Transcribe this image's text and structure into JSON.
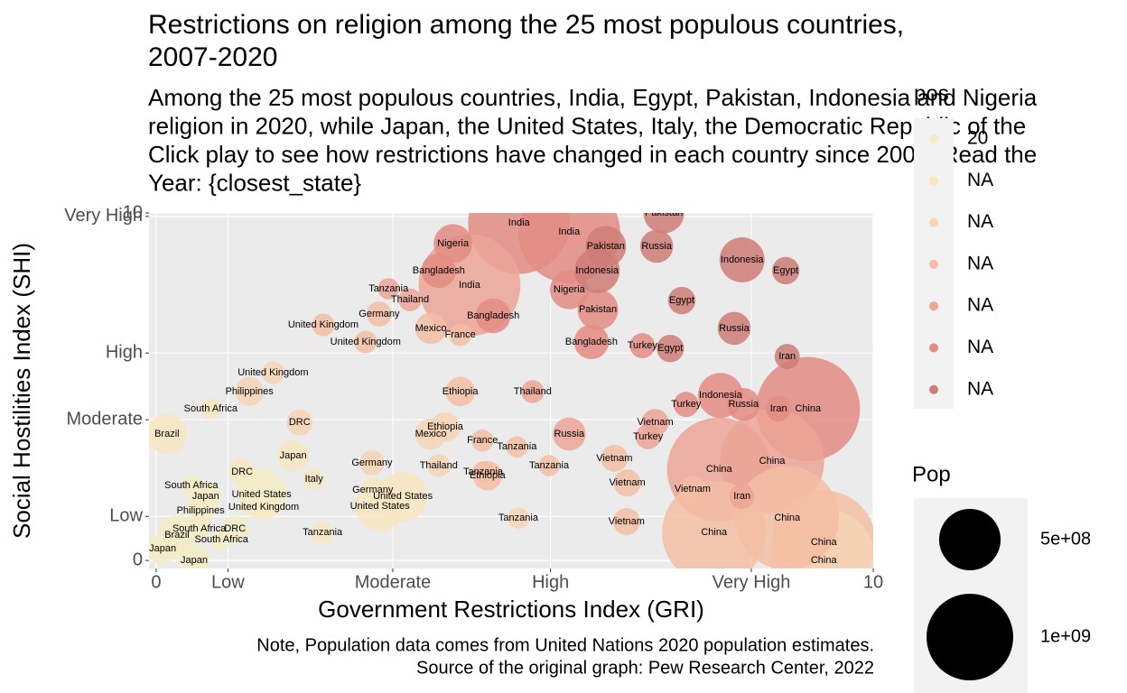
{
  "chart_data": {
    "type": "scatter",
    "title": [
      "Restrictions on religion among the 25 most populous countries,",
      "2007-2020"
    ],
    "subtitle": [
      "Among the 25 most populous countries, India, Egypt, Pakistan, Indonesia and Nigeria",
      "religion in 2020, while Japan, the United States, Italy, the Democratic Republic of the",
      "Click play to see how restrictions have changed in each country since 2007. Read the",
      "Year: {closest_state}"
    ],
    "x_label": "Government Restrictions Index (GRI)",
    "y_label": "Social Hostilities Index (SHI)",
    "caption": [
      "Note, Population data comes from United Nations 2020 population estimates.",
      "Source of the original graph: Pew Research Center, 2022"
    ],
    "xlim": [
      -0.1,
      10
    ],
    "ylim": [
      -0.23,
      10
    ],
    "xticks": [
      0,
      {
        "value": 1.0,
        "label": "Low"
      },
      {
        "value": 3.3,
        "label": "Moderate"
      },
      {
        "value": 5.5,
        "label": "High"
      },
      {
        "value": 8.3,
        "label": "Very High"
      },
      10
    ],
    "yticks": [
      0,
      {
        "value": 1.27,
        "label": "Low"
      },
      {
        "value": 4.05,
        "label": "Moderate"
      },
      {
        "value": 5.97,
        "label": "High"
      },
      {
        "value": 9.9,
        "label": "Very High"
      },
      10
    ],
    "grid": true,
    "color_legend": {
      "title": "pos",
      "items": [
        {
          "label": "20",
          "color": "#f5ecc6"
        },
        {
          "label": "NA",
          "color": "#f7e6c1"
        },
        {
          "label": "NA",
          "color": "#f6d4b4"
        },
        {
          "label": "NA",
          "color": "#f3bea5"
        },
        {
          "label": "NA",
          "color": "#eca596"
        },
        {
          "label": "NA",
          "color": "#e38c84"
        },
        {
          "label": "NA",
          "color": "#cf7c77"
        }
      ]
    },
    "size_legend": {
      "title": "Pop",
      "items": [
        {
          "value": 500000000,
          "label": "5e+08"
        },
        {
          "value": 1000000000,
          "label": "1e+09"
        }
      ]
    },
    "points": [
      {
        "label": "China",
        "x": 9.09,
        "y": 4.36,
        "pop": 1440000000,
        "color": "#e38c84"
      },
      {
        "label": "China",
        "x": 7.85,
        "y": 2.62,
        "pop": 1440000000,
        "color": "#eca596"
      },
      {
        "label": "China",
        "x": 8.59,
        "y": 2.86,
        "pop": 1440000000,
        "color": "#eca596"
      },
      {
        "label": "China",
        "x": 9.31,
        "y": 0.52,
        "pop": 1440000000,
        "color": "#f3bea5"
      },
      {
        "label": "China",
        "x": 9.31,
        "y": 0.0,
        "pop": 1440000000,
        "color": "#f6d4b4"
      },
      {
        "label": "China",
        "x": 7.78,
        "y": 0.81,
        "pop": 1440000000,
        "color": "#f3bea5"
      },
      {
        "label": "China",
        "x": 8.8,
        "y": 1.22,
        "pop": 1440000000,
        "color": "#f3bea5"
      },
      {
        "label": "India",
        "x": 5.06,
        "y": 9.71,
        "pop": 1380000000,
        "color": "#e38c84"
      },
      {
        "label": "India",
        "x": 5.76,
        "y": 9.45,
        "pop": 1380000000,
        "color": "#e38c84"
      },
      {
        "label": "India",
        "x": 4.37,
        "y": 7.92,
        "pop": 1380000000,
        "color": "#eca596"
      },
      {
        "label": "Pakistan",
        "x": 7.08,
        "y": 10.0,
        "pop": 220000000,
        "color": "#cf7c77"
      },
      {
        "label": "Pakistan",
        "x": 6.27,
        "y": 9.04,
        "pop": 220000000,
        "color": "#cf7c77"
      },
      {
        "label": "Pakistan",
        "x": 6.16,
        "y": 7.22,
        "pop": 220000000,
        "color": "#e38c84"
      },
      {
        "label": "Nigeria",
        "x": 4.14,
        "y": 9.12,
        "pop": 200000000,
        "color": "#e38c84"
      },
      {
        "label": "Nigeria",
        "x": 5.76,
        "y": 7.79,
        "pop": 200000000,
        "color": "#e38c84"
      },
      {
        "label": "Russia",
        "x": 6.98,
        "y": 9.04,
        "pop": 145000000,
        "color": "#cf7c77"
      },
      {
        "label": "Russia",
        "x": 8.06,
        "y": 6.68,
        "pop": 145000000,
        "color": "#cf7c77"
      },
      {
        "label": "Russia",
        "x": 8.19,
        "y": 4.49,
        "pop": 145000000,
        "color": "#e38c84"
      },
      {
        "label": "Russia",
        "x": 5.76,
        "y": 3.64,
        "pop": 145000000,
        "color": "#eca596"
      },
      {
        "label": "Indonesia",
        "x": 8.17,
        "y": 8.65,
        "pop": 270000000,
        "color": "#cf7c77"
      },
      {
        "label": "Indonesia",
        "x": 6.15,
        "y": 8.34,
        "pop": 270000000,
        "color": "#cf7c77"
      },
      {
        "label": "Indonesia",
        "x": 7.87,
        "y": 4.75,
        "pop": 270000000,
        "color": "#e38c84"
      },
      {
        "label": "Bangladesh",
        "x": 3.94,
        "y": 8.34,
        "pop": 160000000,
        "color": "#e38c84"
      },
      {
        "label": "Bangladesh",
        "x": 4.7,
        "y": 7.04,
        "pop": 160000000,
        "color": "#e38c84"
      },
      {
        "label": "Bangladesh",
        "x": 6.07,
        "y": 6.29,
        "pop": 160000000,
        "color": "#e38c84"
      },
      {
        "label": "Egypt",
        "x": 8.78,
        "y": 8.34,
        "pop": 100000000,
        "color": "#cf7c77"
      },
      {
        "label": "Egypt",
        "x": 7.33,
        "y": 7.48,
        "pop": 100000000,
        "color": "#cf7c77"
      },
      {
        "label": "Egypt",
        "x": 7.17,
        "y": 6.1,
        "pop": 100000000,
        "color": "#cf7c77"
      },
      {
        "label": "Iran",
        "x": 8.8,
        "y": 5.87,
        "pop": 84000000,
        "color": "#cf7c77"
      },
      {
        "label": "Iran",
        "x": 8.68,
        "y": 4.36,
        "pop": 84000000,
        "color": "#e38c84"
      },
      {
        "label": "Iran",
        "x": 8.17,
        "y": 1.84,
        "pop": 84000000,
        "color": "#eca596"
      },
      {
        "label": "Turkey",
        "x": 6.78,
        "y": 6.18,
        "pop": 84000000,
        "color": "#e38c84"
      },
      {
        "label": "Turkey",
        "x": 7.39,
        "y": 4.49,
        "pop": 84000000,
        "color": "#e38c84"
      },
      {
        "label": "Turkey",
        "x": 6.86,
        "y": 3.56,
        "pop": 84000000,
        "color": "#eca596"
      },
      {
        "label": "Vietnam",
        "x": 6.96,
        "y": 3.97,
        "pop": 97000000,
        "color": "#eca596"
      },
      {
        "label": "Vietnam",
        "x": 6.39,
        "y": 2.94,
        "pop": 97000000,
        "color": "#f3bea5"
      },
      {
        "label": "Vietnam",
        "x": 6.57,
        "y": 2.23,
        "pop": 97000000,
        "color": "#f3bea5"
      },
      {
        "label": "Vietnam",
        "x": 7.48,
        "y": 2.05,
        "pop": 97000000,
        "color": "#f3bea5"
      },
      {
        "label": "Vietnam",
        "x": 6.56,
        "y": 1.12,
        "pop": 97000000,
        "color": "#f3bea5"
      },
      {
        "label": "Thailand",
        "x": 3.54,
        "y": 7.5,
        "pop": 70000000,
        "color": "#eca596"
      },
      {
        "label": "Thailand",
        "x": 5.25,
        "y": 4.86,
        "pop": 70000000,
        "color": "#eca596"
      },
      {
        "label": "Thailand",
        "x": 3.94,
        "y": 2.73,
        "pop": 70000000,
        "color": "#f6d4b4"
      },
      {
        "label": "Tanzania",
        "x": 3.24,
        "y": 7.82,
        "pop": 60000000,
        "color": "#eca596"
      },
      {
        "label": "Tanzania",
        "x": 5.03,
        "y": 3.27,
        "pop": 60000000,
        "color": "#f3bea5"
      },
      {
        "label": "Tanzania",
        "x": 4.56,
        "y": 2.55,
        "pop": 60000000,
        "color": "#f3bea5"
      },
      {
        "label": "Tanzania",
        "x": 5.48,
        "y": 2.73,
        "pop": 60000000,
        "color": "#f3bea5"
      },
      {
        "label": "Tanzania",
        "x": 5.05,
        "y": 1.22,
        "pop": 60000000,
        "color": "#f6d4b4"
      },
      {
        "label": "Tanzania",
        "x": 2.32,
        "y": 0.81,
        "pop": 60000000,
        "color": "#f7e6c1"
      },
      {
        "label": "Germany",
        "x": 3.11,
        "y": 7.09,
        "pop": 83000000,
        "color": "#f3bea5"
      },
      {
        "label": "Germany",
        "x": 3.02,
        "y": 2.03,
        "pop": 83000000,
        "color": "#f7e6c1"
      },
      {
        "label": "Germany",
        "x": 3.01,
        "y": 2.81,
        "pop": 83000000,
        "color": "#f6d4b4"
      },
      {
        "label": "Mexico",
        "x": 3.83,
        "y": 6.68,
        "pop": 130000000,
        "color": "#f3bea5"
      },
      {
        "label": "Mexico",
        "x": 3.83,
        "y": 3.64,
        "pop": 130000000,
        "color": "#f6d4b4"
      },
      {
        "label": "United Kingdom",
        "x": 2.33,
        "y": 6.78,
        "pop": 68000000,
        "color": "#f3bea5"
      },
      {
        "label": "United Kingdom",
        "x": 2.92,
        "y": 6.29,
        "pop": 68000000,
        "color": "#f3bea5"
      },
      {
        "label": "United Kingdom",
        "x": 1.63,
        "y": 5.4,
        "pop": 68000000,
        "color": "#f6d4b4"
      },
      {
        "label": "United Kingdom",
        "x": 1.5,
        "y": 1.53,
        "pop": 68000000,
        "color": "#f7e6c1"
      },
      {
        "label": "France",
        "x": 4.24,
        "y": 6.49,
        "pop": 65000000,
        "color": "#f3bea5"
      },
      {
        "label": "France",
        "x": 4.55,
        "y": 3.45,
        "pop": 65000000,
        "color": "#f3bea5"
      },
      {
        "label": "Ethiopia",
        "x": 4.24,
        "y": 4.86,
        "pop": 115000000,
        "color": "#f3bea5"
      },
      {
        "label": "Ethiopia",
        "x": 4.03,
        "y": 3.84,
        "pop": 115000000,
        "color": "#f6d4b4"
      },
      {
        "label": "Ethiopia",
        "x": 4.62,
        "y": 2.44,
        "pop": 115000000,
        "color": "#f3bea5"
      },
      {
        "label": "Philippines",
        "x": 1.3,
        "y": 4.86,
        "pop": 110000000,
        "color": "#f6d4b4"
      },
      {
        "label": "Philippines",
        "x": 0.62,
        "y": 1.43,
        "pop": 110000000,
        "color": "#f5ecc6"
      },
      {
        "label": "DRC",
        "x": 2.0,
        "y": 3.97,
        "pop": 90000000,
        "color": "#f6d4b4"
      },
      {
        "label": "DRC",
        "x": 1.2,
        "y": 2.55,
        "pop": 90000000,
        "color": "#f7e6c1"
      },
      {
        "label": "DRC",
        "x": 1.1,
        "y": 0.91,
        "pop": 90000000,
        "color": "#f5ecc6"
      },
      {
        "label": "Brazil",
        "x": 0.15,
        "y": 3.64,
        "pop": 210000000,
        "color": "#f7e6c1"
      },
      {
        "label": "Brazil",
        "x": 0.29,
        "y": 0.73,
        "pop": 210000000,
        "color": "#f5ecc6"
      },
      {
        "label": "South Africa",
        "x": 0.76,
        "y": 4.36,
        "pop": 59000000,
        "color": "#f7e6c1"
      },
      {
        "label": "South Africa",
        "x": 0.49,
        "y": 2.16,
        "pop": 59000000,
        "color": "#f5ecc6"
      },
      {
        "label": "South Africa",
        "x": 0.6,
        "y": 0.91,
        "pop": 59000000,
        "color": "#f5ecc6"
      },
      {
        "label": "South Africa",
        "x": 0.91,
        "y": 0.6,
        "pop": 59000000,
        "color": "#f5ecc6"
      },
      {
        "label": "Japan",
        "x": 1.91,
        "y": 3.01,
        "pop": 126000000,
        "color": "#f7e6c1"
      },
      {
        "label": "Japan",
        "x": 0.69,
        "y": 1.84,
        "pop": 126000000,
        "color": "#f5ecc6"
      },
      {
        "label": "Japan",
        "x": 0.09,
        "y": 0.34,
        "pop": 126000000,
        "color": "#f5ecc6"
      },
      {
        "label": "Japan",
        "x": 0.53,
        "y": 0.0,
        "pop": 126000000,
        "color": "#f5ecc6"
      },
      {
        "label": "Italy",
        "x": 2.2,
        "y": 2.34,
        "pop": 60000000,
        "color": "#f7e6c1"
      },
      {
        "label": "United States",
        "x": 3.12,
        "y": 1.56,
        "pop": 330000000,
        "color": "#f7e6c1"
      },
      {
        "label": "United States",
        "x": 3.44,
        "y": 1.84,
        "pop": 330000000,
        "color": "#f7e6c1"
      },
      {
        "label": "United States",
        "x": 1.47,
        "y": 1.9,
        "pop": 330000000,
        "color": "#f5ecc6"
      }
    ]
  }
}
